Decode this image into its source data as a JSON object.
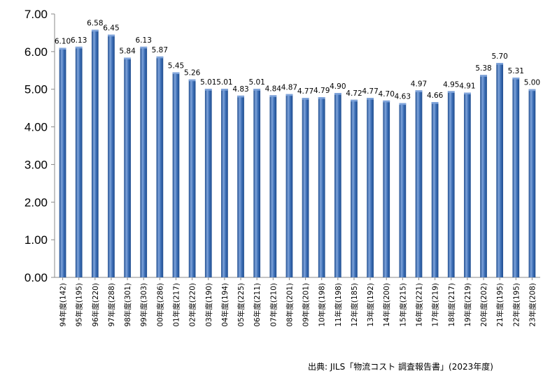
{
  "chart_data": {
    "type": "bar",
    "categories": [
      "94年度(142)",
      "95年度(195)",
      "96年度(220)",
      "97年度(288)",
      "98年度(301)",
      "99年度(303)",
      "00年度(286)",
      "01年度(217)",
      "02年度(220)",
      "03年度(190)",
      "04年度(194)",
      "05年度(225)",
      "06年度(211)",
      "07年度(210)",
      "08年度(201)",
      "09年度(201)",
      "10年度(198)",
      "11年度(198)",
      "12年度(185)",
      "13年度(192)",
      "14年度(200)",
      "15年度(215)",
      "16年度(221)",
      "17年度(219)",
      "18年度(217)",
      "19年度(219)",
      "20年度(202)",
      "21年度(195)",
      "22年度(195)",
      "23年度(208)"
    ],
    "values": [
      6.1,
      6.13,
      6.58,
      6.45,
      5.84,
      6.13,
      5.87,
      5.45,
      5.26,
      5.01,
      5.01,
      4.83,
      5.01,
      4.84,
      4.87,
      4.77,
      4.79,
      4.9,
      4.72,
      4.77,
      4.7,
      4.63,
      4.97,
      4.66,
      4.95,
      4.91,
      5.38,
      5.7,
      5.31,
      5.0
    ],
    "value_labels": [
      "6.10",
      "6.13",
      "6.58",
      "6.45",
      "5.84",
      "6.13",
      "5.87",
      "5.45",
      "5.26",
      "5.01",
      "5.01",
      "4.83",
      "5.01",
      "4.84",
      "4.87",
      "4.77",
      "4.79",
      "4.90",
      "4.72",
      "4.77",
      "4.70",
      "4.63",
      "4.97",
      "4.66",
      "4.95",
      "4.91",
      "5.38",
      "5.70",
      "5.31",
      "5.00"
    ],
    "y_ticks": [
      "0.00",
      "1.00",
      "2.00",
      "3.00",
      "4.00",
      "5.00",
      "6.00",
      "7.00"
    ],
    "ylim": [
      0,
      7
    ],
    "grid": false,
    "bar_color": "#3d6fb6",
    "bar_highlight": "#7fa4db",
    "bar_shadow": "#1f4d8f",
    "title": "",
    "xlabel": "",
    "ylabel": ""
  },
  "source_note": "出典: JILS「物流コスト 調査報告書」(2023年度)"
}
